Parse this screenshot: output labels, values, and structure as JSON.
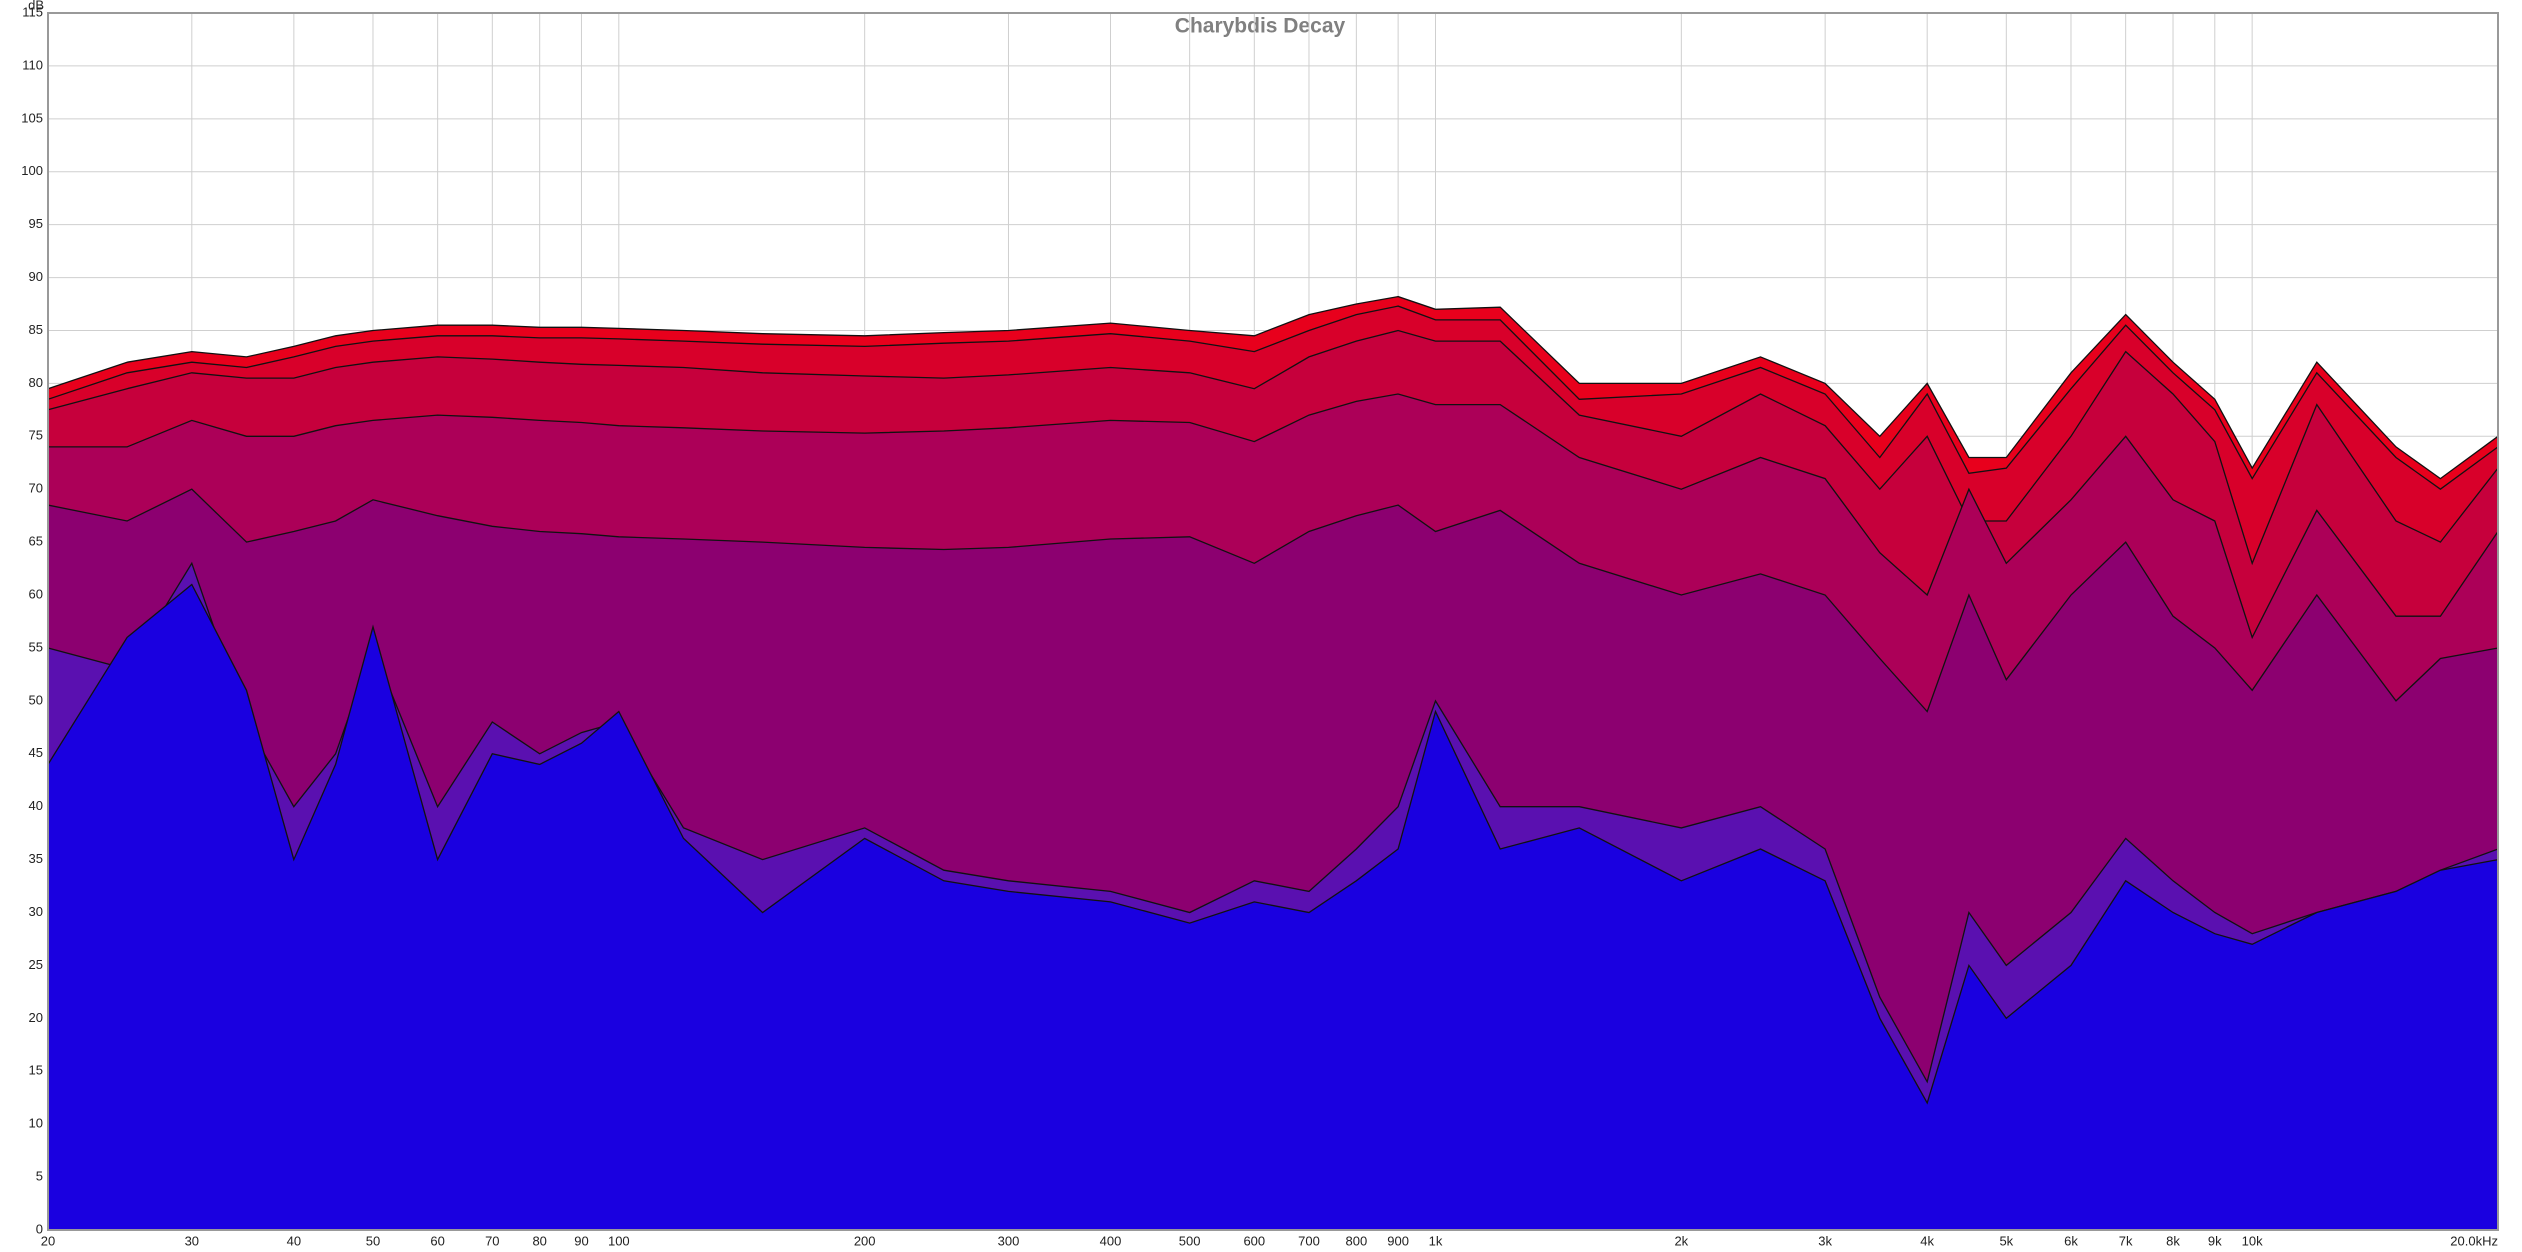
{
  "chart_data": {
    "type": "area",
    "title": "Charybdis Decay",
    "y_label": "dB",
    "log_x": true,
    "grid": true,
    "xlim": [
      20,
      20000
    ],
    "ylim": [
      0,
      115
    ],
    "yticks": [
      0,
      5,
      10,
      15,
      20,
      25,
      30,
      35,
      40,
      45,
      50,
      55,
      60,
      65,
      70,
      75,
      80,
      85,
      90,
      95,
      100,
      105,
      110,
      115
    ],
    "xticks": [
      20,
      30,
      40,
      50,
      60,
      70,
      80,
      90,
      100,
      200,
      300,
      400,
      500,
      600,
      700,
      800,
      900,
      {
        "value": 1000,
        "label": "1k"
      },
      {
        "value": 2000,
        "label": "2k"
      },
      {
        "value": 3000,
        "label": "3k"
      },
      {
        "value": 4000,
        "label": "4k"
      },
      {
        "value": 5000,
        "label": "5k"
      },
      {
        "value": 6000,
        "label": "6k"
      },
      {
        "value": 7000,
        "label": "7k"
      },
      {
        "value": 8000,
        "label": "8k"
      },
      {
        "value": 9000,
        "label": "9k"
      },
      {
        "value": 10000,
        "label": "10k"
      },
      {
        "value": 20000,
        "label": "20.0kHz"
      }
    ],
    "x": [
      20,
      25,
      30,
      35,
      40,
      45,
      50,
      60,
      70,
      80,
      90,
      100,
      120,
      150,
      200,
      250,
      300,
      400,
      500,
      600,
      700,
      800,
      900,
      1000,
      1200,
      1500,
      2000,
      2500,
      3000,
      3500,
      4000,
      4500,
      5000,
      6000,
      7000,
      8000,
      9000,
      10000,
      12000,
      15000,
      17000,
      20000
    ],
    "series": [
      {
        "color": "#e8001c",
        "values": [
          79.5,
          82,
          83,
          82.5,
          83.5,
          84.5,
          85,
          85.5,
          85.5,
          85.3,
          85.3,
          85.2,
          85,
          84.7,
          84.5,
          84.8,
          85,
          85.7,
          85,
          84.5,
          86.5,
          87.5,
          88.2,
          87,
          87.2,
          80,
          80,
          82.5,
          80,
          75,
          80,
          73,
          73,
          81,
          86.5,
          82,
          78.5,
          72,
          82,
          74,
          71,
          75
        ]
      },
      {
        "color": "#d8002a",
        "values": [
          78.5,
          81,
          82,
          81.5,
          82.5,
          83.5,
          84,
          84.5,
          84.5,
          84.3,
          84.3,
          84.2,
          84,
          83.7,
          83.5,
          83.8,
          84,
          84.7,
          84,
          83,
          85,
          86.5,
          87.3,
          86,
          86,
          78.5,
          79,
          81.5,
          79,
          73,
          79,
          71.5,
          72,
          79.5,
          85.5,
          81,
          77.5,
          71,
          81,
          73,
          70,
          74
        ]
      },
      {
        "color": "#c6003c",
        "values": [
          77.5,
          79.5,
          81,
          80.5,
          80.5,
          81.5,
          82,
          82.5,
          82.3,
          82,
          81.8,
          81.7,
          81.5,
          81,
          80.7,
          80.5,
          80.8,
          81.5,
          81,
          79.5,
          82.5,
          84,
          85,
          84,
          84,
          77,
          75,
          79,
          76,
          70,
          75,
          67,
          67,
          75,
          83,
          79,
          74.5,
          63,
          78,
          67,
          65,
          72
        ]
      },
      {
        "color": "#ac0058",
        "values": [
          74,
          74,
          76.5,
          75,
          75,
          76,
          76.5,
          77,
          76.8,
          76.5,
          76.3,
          76,
          75.8,
          75.5,
          75.3,
          75.5,
          75.8,
          76.5,
          76.3,
          74.5,
          77,
          78.3,
          79,
          78,
          78,
          73,
          70,
          73,
          71,
          64,
          60,
          70,
          63,
          69,
          75,
          69,
          67,
          56,
          68,
          58,
          58,
          66
        ]
      },
      {
        "color": "#8c0070",
        "values": [
          68.5,
          67,
          70,
          65,
          66,
          67,
          69,
          67.5,
          66.5,
          66,
          65.8,
          65.5,
          65.3,
          65,
          64.5,
          64.3,
          64.5,
          65.3,
          65.5,
          63,
          66,
          67.5,
          68.5,
          66,
          68,
          63,
          60,
          62,
          60,
          54,
          49,
          60,
          52,
          60,
          65,
          58,
          55,
          51,
          60,
          50,
          54,
          55
        ]
      },
      {
        "color": "#5a10b0",
        "values": [
          55,
          53,
          63,
          48,
          40,
          45,
          55,
          40,
          48,
          45,
          47,
          48,
          38,
          35,
          38,
          34,
          33,
          32,
          30,
          33,
          32,
          36,
          40,
          50,
          40,
          40,
          38,
          40,
          36,
          22,
          14,
          30,
          25,
          30,
          37,
          33,
          30,
          28,
          30,
          32,
          34,
          36
        ]
      },
      {
        "color": "#1a00e0",
        "values": [
          44,
          56,
          61,
          51,
          35,
          44,
          57,
          35,
          45,
          44,
          46,
          49,
          37,
          30,
          37,
          33,
          32,
          31,
          29,
          31,
          30,
          33,
          36,
          49,
          36,
          38,
          33,
          36,
          33,
          20,
          12,
          25,
          20,
          25,
          33,
          30,
          28,
          27,
          30,
          32,
          34,
          35
        ]
      }
    ]
  }
}
